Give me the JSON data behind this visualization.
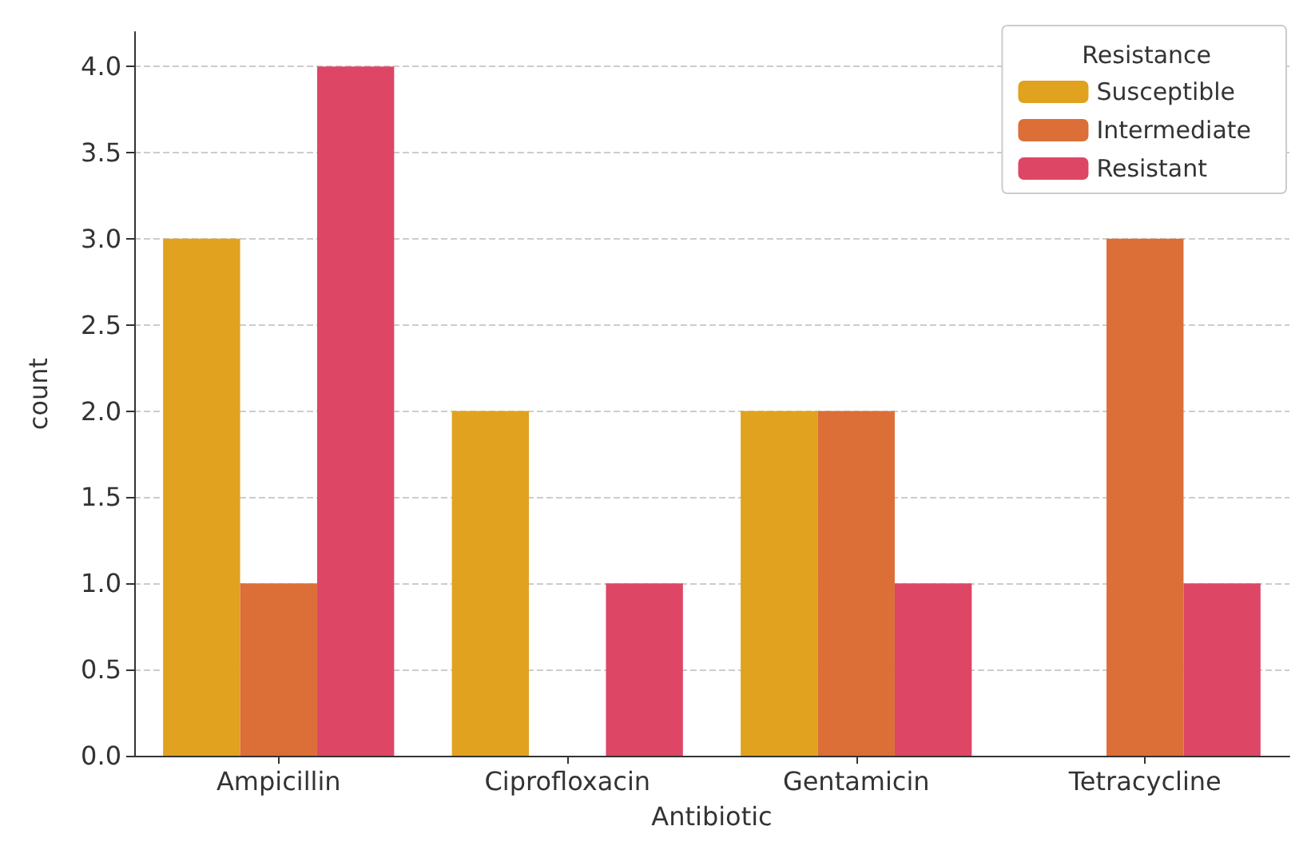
{
  "chart_data": {
    "type": "bar",
    "xlabel": "Antibiotic",
    "ylabel": "count",
    "legend_title": "Resistance",
    "categories": [
      "Ampicillin",
      "Ciprofloxacin",
      "Gentamicin",
      "Tetracycline"
    ],
    "series": [
      {
        "name": "Susceptible",
        "color": "#e0a21f",
        "values": [
          3,
          2,
          2,
          null
        ]
      },
      {
        "name": "Intermediate",
        "color": "#dc6e37",
        "values": [
          1,
          null,
          2,
          3
        ]
      },
      {
        "name": "Resistant",
        "color": "#dd4765",
        "values": [
          4,
          1,
          1,
          1
        ]
      }
    ],
    "ylim": [
      0,
      4.2
    ],
    "yticks": [
      {
        "value": 0,
        "label": "0.0"
      },
      {
        "value": 0.5,
        "label": "0.5"
      },
      {
        "value": 1,
        "label": "1.0"
      },
      {
        "value": 1.5,
        "label": "1.5"
      },
      {
        "value": 2,
        "label": "2.0"
      },
      {
        "value": 2.5,
        "label": "2.5"
      },
      {
        "value": 3,
        "label": "3.0"
      },
      {
        "value": 3.5,
        "label": "3.5"
      },
      {
        "value": 4,
        "label": "4.0"
      }
    ],
    "grid": "y",
    "legend": "top right"
  }
}
